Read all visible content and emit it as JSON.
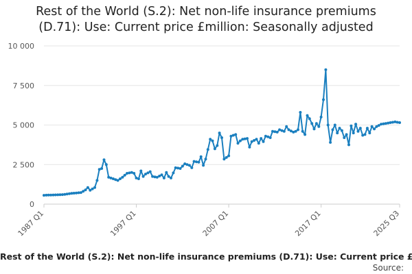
{
  "chart_data": {
    "type": "line",
    "title_line1": "Rest of the World (S.2): Net non-life insurance premiums",
    "title_line2": "(D.71): Use: Current price £million: Seasonally adjusted",
    "xlabel": "",
    "ylabel": "",
    "ylim": [
      0,
      10000
    ],
    "yticks": [
      "0",
      "2 500",
      "5 000",
      "7 500",
      "10 000"
    ],
    "ytick_values": [
      0,
      2500,
      5000,
      7500,
      10000
    ],
    "xticks": [
      "1987 Q1",
      "1997 Q1",
      "2007 Q1",
      "2017 Q1",
      "2025 Q3"
    ],
    "xtick_indices": [
      0,
      40,
      80,
      120,
      154
    ],
    "grid": true,
    "series": [
      {
        "name": "Rest of the World (S.2): Net non-life insurance premiums (D.71): Use: Current price £million: Seasonally adjusted",
        "color": "#1a7fbf",
        "anchors": [
          [
            0,
            560
          ],
          [
            4,
            580
          ],
          [
            8,
            600
          ],
          [
            12,
            680
          ],
          [
            16,
            730
          ],
          [
            18,
            900
          ],
          [
            19,
            1050
          ],
          [
            20,
            880
          ],
          [
            22,
            1050
          ],
          [
            23,
            1500
          ],
          [
            24,
            2200
          ],
          [
            25,
            2250
          ],
          [
            26,
            2800
          ],
          [
            27,
            2500
          ],
          [
            28,
            1700
          ],
          [
            30,
            1600
          ],
          [
            32,
            1500
          ],
          [
            34,
            1700
          ],
          [
            36,
            1950
          ],
          [
            38,
            2000
          ],
          [
            39,
            1950
          ],
          [
            40,
            1650
          ],
          [
            41,
            1600
          ],
          [
            42,
            2100
          ],
          [
            43,
            1750
          ],
          [
            44,
            1900
          ],
          [
            46,
            2050
          ],
          [
            47,
            1750
          ],
          [
            49,
            1700
          ],
          [
            51,
            1850
          ],
          [
            52,
            1650
          ],
          [
            53,
            2000
          ],
          [
            54,
            1750
          ],
          [
            55,
            1650
          ],
          [
            57,
            2300
          ],
          [
            59,
            2250
          ],
          [
            61,
            2550
          ],
          [
            63,
            2450
          ],
          [
            64,
            2300
          ],
          [
            65,
            2700
          ],
          [
            67,
            2650
          ],
          [
            68,
            3000
          ],
          [
            69,
            2450
          ],
          [
            70,
            2850
          ],
          [
            71,
            3450
          ],
          [
            72,
            4100
          ],
          [
            73,
            4000
          ],
          [
            74,
            3500
          ],
          [
            75,
            3700
          ],
          [
            76,
            4500
          ],
          [
            77,
            4200
          ],
          [
            78,
            2850
          ],
          [
            80,
            3050
          ],
          [
            81,
            4300
          ],
          [
            83,
            4400
          ],
          [
            84,
            3850
          ],
          [
            85,
            4000
          ],
          [
            86,
            4100
          ],
          [
            88,
            4150
          ],
          [
            89,
            3600
          ],
          [
            90,
            3950
          ],
          [
            92,
            4100
          ],
          [
            93,
            3850
          ],
          [
            94,
            4150
          ],
          [
            95,
            3950
          ],
          [
            96,
            4300
          ],
          [
            98,
            4200
          ],
          [
            99,
            4600
          ],
          [
            101,
            4550
          ],
          [
            102,
            4700
          ],
          [
            104,
            4600
          ],
          [
            105,
            4900
          ],
          [
            106,
            4700
          ],
          [
            108,
            4550
          ],
          [
            109,
            4600
          ],
          [
            110,
            4700
          ],
          [
            111,
            5800
          ],
          [
            112,
            4600
          ],
          [
            113,
            4400
          ],
          [
            114,
            5600
          ],
          [
            115,
            5400
          ],
          [
            116,
            5100
          ],
          [
            117,
            4750
          ],
          [
            118,
            5100
          ],
          [
            119,
            4900
          ],
          [
            120,
            5500
          ],
          [
            121,
            6600
          ],
          [
            122,
            8500
          ],
          [
            123,
            5000
          ],
          [
            124,
            3900
          ],
          [
            125,
            4700
          ],
          [
            126,
            5000
          ],
          [
            127,
            4500
          ],
          [
            128,
            4800
          ],
          [
            129,
            4650
          ],
          [
            130,
            4200
          ],
          [
            131,
            4400
          ],
          [
            132,
            3750
          ],
          [
            133,
            4950
          ],
          [
            134,
            4500
          ],
          [
            135,
            5050
          ],
          [
            136,
            4600
          ],
          [
            137,
            4800
          ],
          [
            138,
            4350
          ],
          [
            139,
            4400
          ],
          [
            140,
            4800
          ],
          [
            141,
            4500
          ],
          [
            142,
            4900
          ],
          [
            143,
            4750
          ],
          [
            144,
            4900
          ],
          [
            146,
            5050
          ],
          [
            148,
            5100
          ],
          [
            150,
            5150
          ],
          [
            152,
            5200
          ],
          [
            154,
            5150
          ]
        ]
      }
    ],
    "legend_text": "Rest of the World (S.2): Net non-life insurance premiums (D.71): Use: Current price £million: Seasonally adjusted",
    "source_label": "Source:"
  }
}
